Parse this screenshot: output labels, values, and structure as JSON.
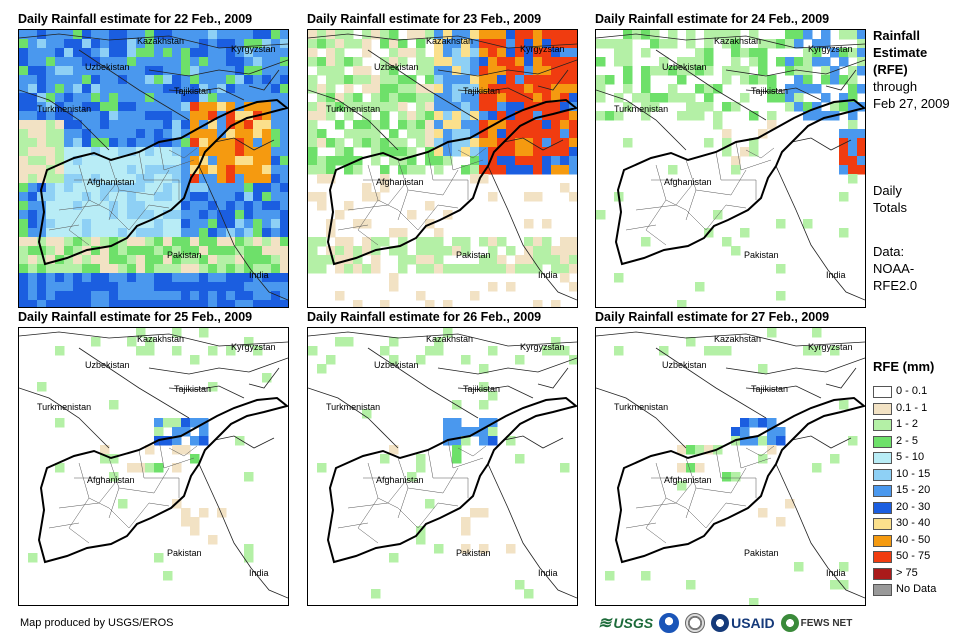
{
  "panels": [
    {
      "title": "Daily Rainfall estimate for 22 Feb., 2009",
      "intensity": "heavy"
    },
    {
      "title": "Daily Rainfall estimate for 23 Feb., 2009",
      "intensity": "north"
    },
    {
      "title": "Daily Rainfall estimate for 24 Feb., 2009",
      "intensity": "light"
    },
    {
      "title": "Daily Rainfall estimate for 25 Feb., 2009",
      "intensity": "sparse"
    },
    {
      "title": "Daily Rainfall estimate for 26 Feb., 2009",
      "intensity": "sparse"
    },
    {
      "title": "Daily Rainfall estimate for 27 Feb., 2009",
      "intensity": "sparse"
    }
  ],
  "country_labels": {
    "kazakhstan": "Kazakhstan",
    "kyrgyzstan": "Kyrgyzstan",
    "uzbekistan": "Uzbekistan",
    "tajikistan": "Tajikistan",
    "turkmenistan": "Turkmenistan",
    "afghanistan": "Afghanistan",
    "pakistan": "Pakistan",
    "india": "India"
  },
  "side": {
    "title_line1": "Rainfall",
    "title_line2": "Estimate",
    "title_line3": "(RFE)",
    "through": "through",
    "date": "Feb 27, 2009",
    "totals_line1": "Daily",
    "totals_line2": "Totals",
    "data_label": "Data:",
    "data_src1": "NOAA-",
    "data_src2": "RFE2.0"
  },
  "legend": {
    "title": "RFE (mm)",
    "items": [
      {
        "label": "0 - 0.1",
        "color": "#ffffff"
      },
      {
        "label": "0.1 - 1",
        "color": "#f2e2c4"
      },
      {
        "label": "1 - 2",
        "color": "#b4f0a6"
      },
      {
        "label": "2 - 5",
        "color": "#6ee06a"
      },
      {
        "label": "5 - 10",
        "color": "#b8ecf6"
      },
      {
        "label": "10 - 15",
        "color": "#8ed0f5"
      },
      {
        "label": "15 - 20",
        "color": "#4a98ee"
      },
      {
        "label": "20 - 30",
        "color": "#1b5ee0"
      },
      {
        "label": "30 - 40",
        "color": "#fbe08c"
      },
      {
        "label": "40 - 50",
        "color": "#f59a10"
      },
      {
        "label": "50 - 75",
        "color": "#f03c10"
      },
      {
        "label": "> 75",
        "color": "#aa1a1a"
      },
      {
        "label": "No Data",
        "color": "#999999"
      }
    ]
  },
  "footer": {
    "credit": "Map produced by USGS/EROS"
  },
  "logos": {
    "usgs": "USGS",
    "usaid": "USAID",
    "fewsnet": "FEWS NET"
  }
}
